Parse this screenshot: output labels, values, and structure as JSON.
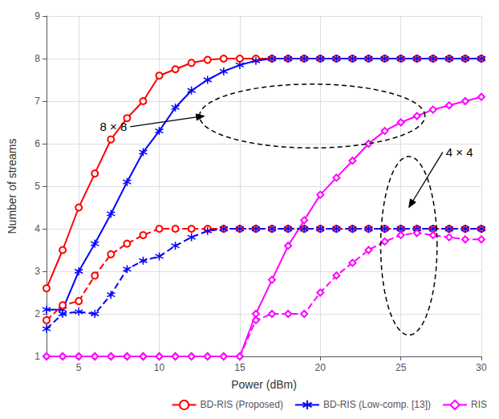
{
  "chart_data": {
    "type": "line",
    "xlabel": "Power (dBm)",
    "ylabel": "Number of streams",
    "x": [
      3,
      4,
      5,
      6,
      7,
      8,
      9,
      10,
      11,
      12,
      13,
      14,
      15,
      16,
      17,
      18,
      19,
      20,
      21,
      22,
      23,
      24,
      25,
      26,
      27,
      28,
      29,
      30
    ],
    "series": [
      {
        "name": "BD-RIS (Proposed)",
        "color": "#FF0000",
        "marker": "circle",
        "line_style": "solid",
        "values": [
          2.6,
          3.5,
          4.5,
          5.3,
          6.1,
          6.6,
          7.0,
          7.6,
          7.75,
          7.9,
          7.97,
          8.0,
          8.0,
          8.0,
          8.0,
          8.0,
          8.0,
          8.0,
          8.0,
          8.0,
          8.0,
          8.0,
          8.0,
          8.0,
          8.0,
          8.0,
          8.0,
          8.0
        ]
      },
      {
        "name": "BD-RIS (Low-comp. [13])",
        "color": "#0000FF",
        "marker": "asterisk",
        "line_style": "solid",
        "values": [
          2.1,
          2.1,
          3.0,
          3.65,
          4.35,
          5.1,
          5.8,
          6.3,
          6.85,
          7.25,
          7.5,
          7.7,
          7.85,
          7.95,
          8.0,
          8.0,
          8.0,
          8.0,
          8.0,
          8.0,
          8.0,
          8.0,
          8.0,
          8.0,
          8.0,
          8.0,
          8.0,
          8.0
        ]
      },
      {
        "name": "RIS",
        "color": "#FF00FF",
        "marker": "diamond",
        "line_style": "solid",
        "values": [
          1.0,
          1.0,
          1.0,
          1.0,
          1.0,
          1.0,
          1.0,
          1.0,
          1.0,
          1.0,
          1.0,
          1.0,
          1.0,
          2.0,
          2.8,
          3.6,
          4.2,
          4.8,
          5.2,
          5.6,
          6.0,
          6.3,
          6.5,
          6.65,
          6.8,
          6.9,
          7.0,
          7.1
        ]
      },
      {
        "name": "BD-RIS (Proposed)",
        "color": "#FF0000",
        "marker": "circle",
        "line_style": "dashed",
        "values": [
          1.85,
          2.2,
          2.3,
          2.9,
          3.4,
          3.65,
          3.85,
          4.0,
          4.0,
          4.0,
          4.0,
          4.0,
          4.0,
          4.0,
          4.0,
          4.0,
          4.0,
          4.0,
          4.0,
          4.0,
          4.0,
          4.0,
          4.0,
          4.0,
          4.0,
          4.0,
          4.0,
          4.0
        ]
      },
      {
        "name": "BD-RIS (Low-comp. [13])",
        "color": "#0000FF",
        "marker": "asterisk",
        "line_style": "dashed",
        "values": [
          1.65,
          2.0,
          2.05,
          2.0,
          2.45,
          3.05,
          3.25,
          3.35,
          3.6,
          3.8,
          3.95,
          4.0,
          4.0,
          4.0,
          4.0,
          4.0,
          4.0,
          4.0,
          4.0,
          4.0,
          4.0,
          4.0,
          4.0,
          4.0,
          4.0,
          4.0,
          4.0,
          4.0
        ]
      },
      {
        "name": "RIS",
        "color": "#FF00FF",
        "marker": "diamond",
        "line_style": "dashed",
        "values": [
          1.0,
          1.0,
          1.0,
          1.0,
          1.0,
          1.0,
          1.0,
          1.0,
          1.0,
          1.0,
          1.0,
          1.0,
          1.0,
          1.85,
          2.0,
          2.0,
          2.0,
          2.5,
          2.9,
          3.2,
          3.5,
          3.7,
          3.85,
          3.9,
          3.85,
          3.8,
          3.75,
          3.75
        ]
      }
    ],
    "xlim": [
      3,
      30
    ],
    "ylim": [
      1,
      9
    ],
    "xticks": [
      5,
      10,
      15,
      20,
      25,
      30
    ],
    "yticks": [
      1,
      2,
      3,
      4,
      5,
      6,
      7,
      8,
      9
    ],
    "grid": true,
    "legend": "lower right",
    "ellipses": [
      {
        "cx": 19.5,
        "cy": 6.65,
        "width": 14.0,
        "height": 1.5
      },
      {
        "cx": 25.5,
        "cy": 3.6,
        "width": 3.5,
        "height": 4.2
      }
    ],
    "annotations": [
      {
        "text": "8 × 8",
        "x": 8.0,
        "y": 6.4,
        "arrow_x": 12.8,
        "arrow_y": 6.65
      },
      {
        "text": "4 × 4",
        "x": 27.8,
        "y": 5.8,
        "arrow_x": 25.5,
        "arrow_y": 4.5
      }
    ]
  }
}
